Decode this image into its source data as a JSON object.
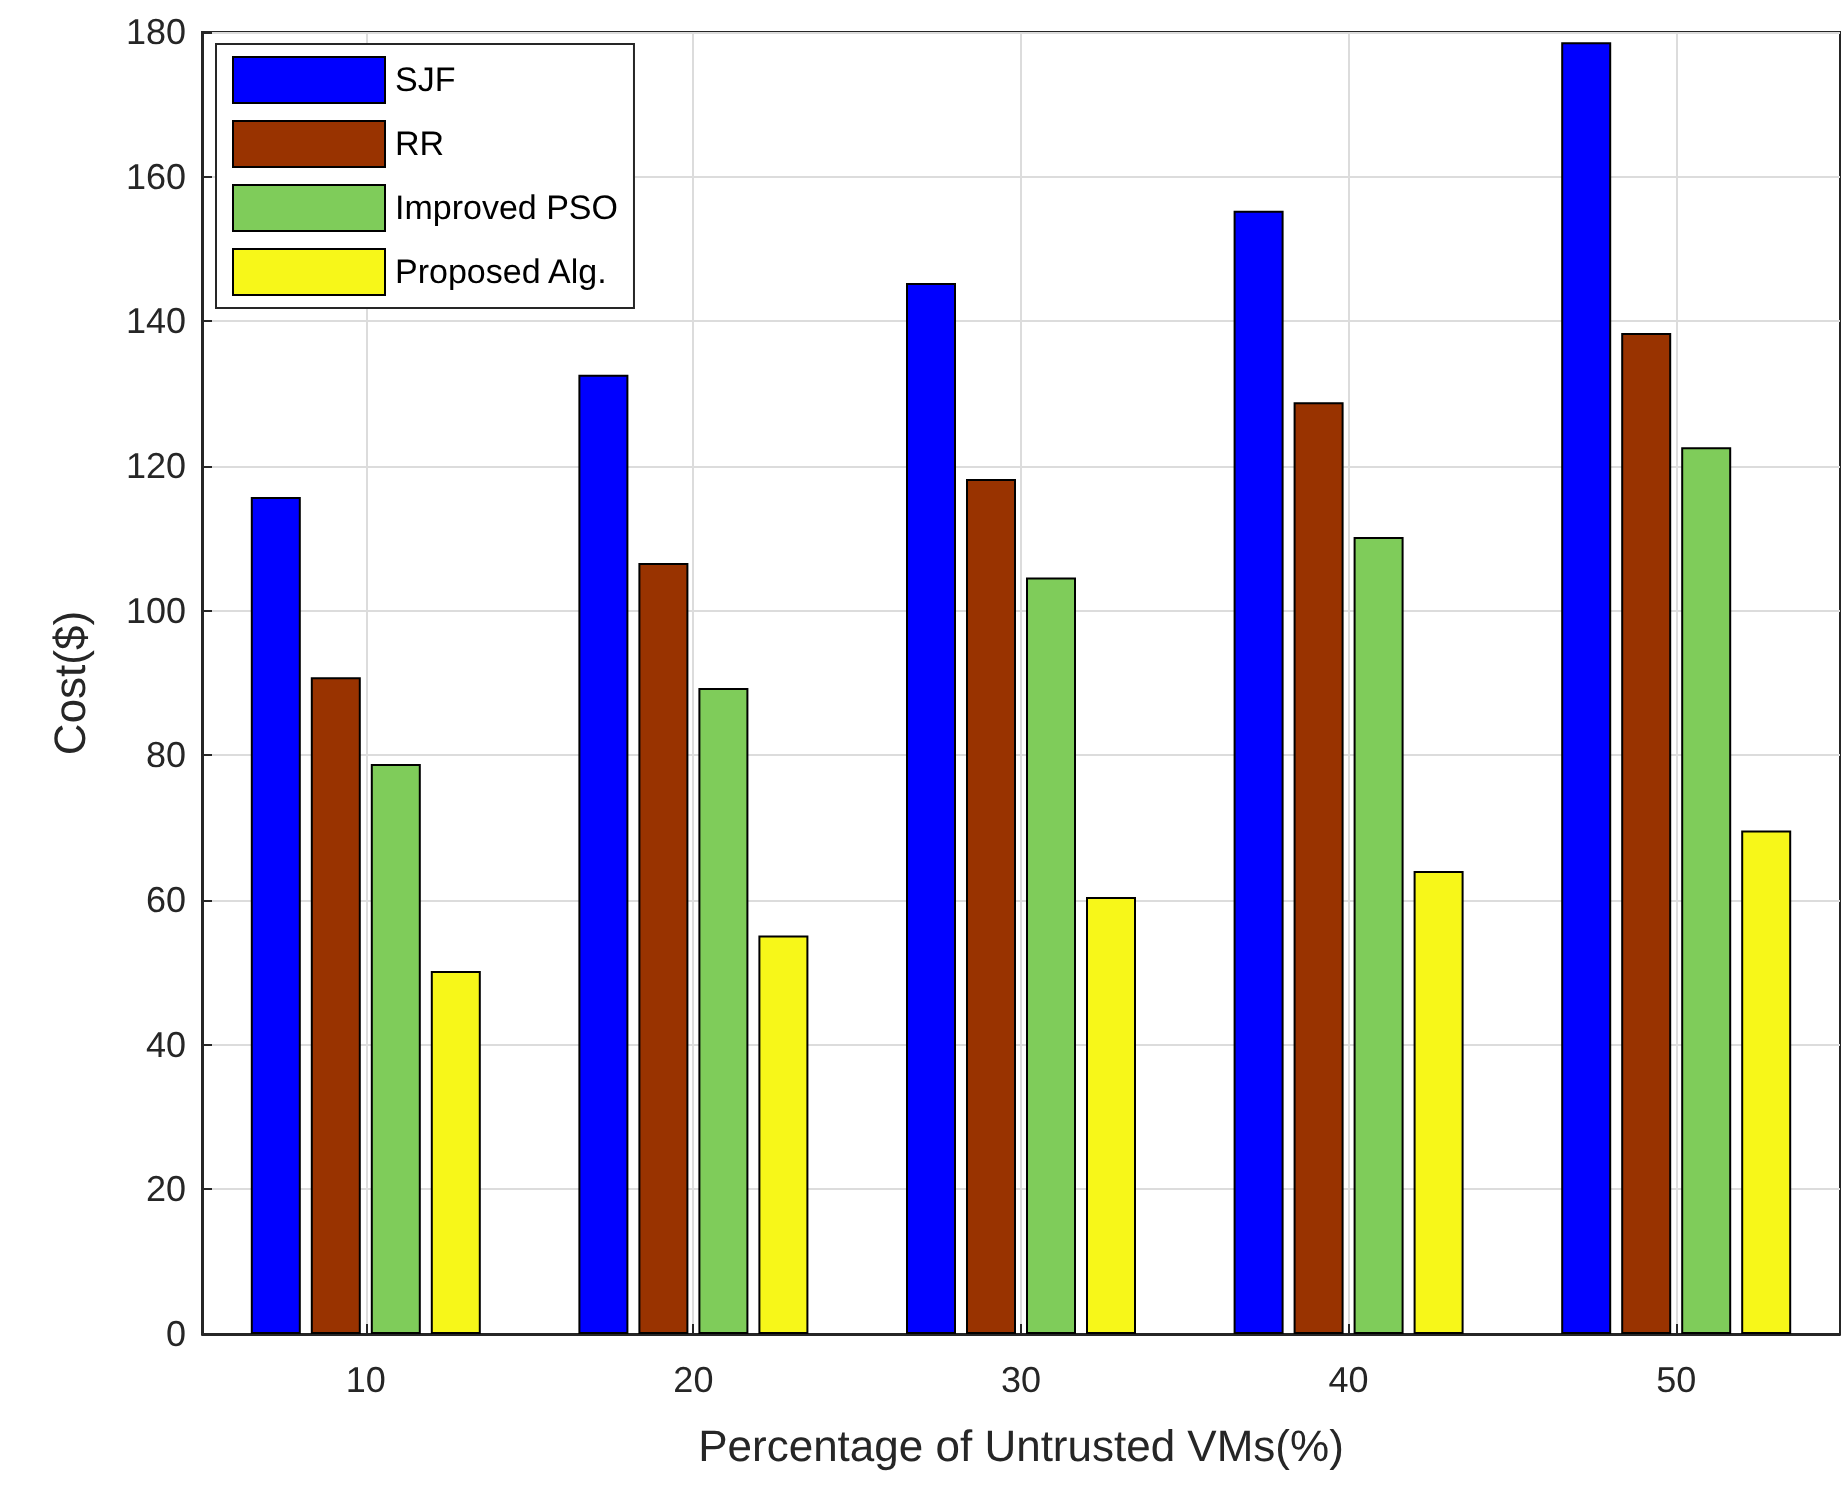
{
  "chart_data": {
    "type": "bar",
    "xlabel": "Percentage of Untrusted VMs(%)",
    "ylabel": "Cost($)",
    "x": [
      10,
      20,
      30,
      40,
      50
    ],
    "xlim": [
      5,
      55
    ],
    "xticks": [
      10,
      20,
      30,
      40,
      50
    ],
    "ylim": [
      0,
      180
    ],
    "yticks": [
      0,
      20,
      40,
      60,
      80,
      100,
      120,
      140,
      160,
      180
    ],
    "series": [
      {
        "name": "SJF",
        "color": "#0000ff",
        "values": [
          115.7,
          132.6,
          145.3,
          155.3,
          178.6
        ]
      },
      {
        "name": "RR",
        "color": "#993300",
        "values": [
          90.8,
          106.6,
          118.2,
          128.8,
          138.4
        ]
      },
      {
        "name": "Improved PSO",
        "color": "#7fcc5a",
        "values": [
          78.8,
          89.3,
          104.6,
          110.2,
          122.6
        ]
      },
      {
        "name": "Proposed Alg.",
        "color": "#f7f719",
        "values": [
          50.2,
          55.1,
          60.4,
          64.0,
          69.6
        ]
      }
    ],
    "grid": true,
    "legend": "top left"
  }
}
